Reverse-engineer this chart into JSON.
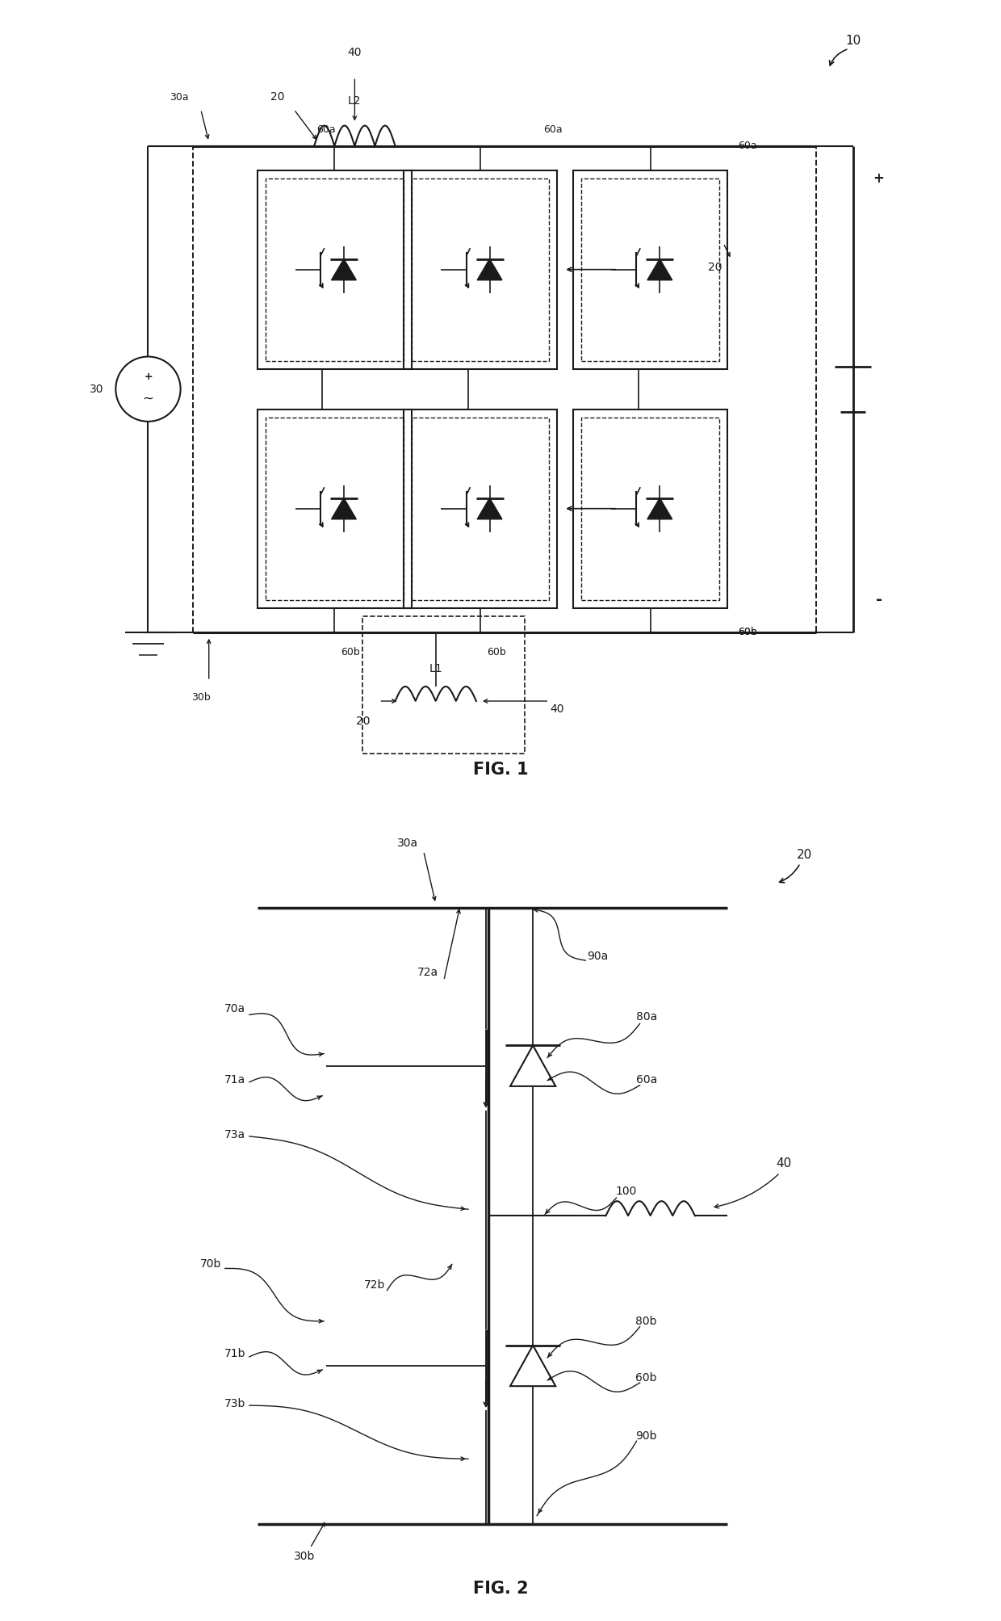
{
  "bg_color": "#ffffff",
  "lc": "#1a1a1a",
  "fig1_title": "FIG. 1",
  "fig2_title": "FIG. 2",
  "labels": {
    "10": "10",
    "40": "40",
    "20": "20",
    "30": "30",
    "30a": "30a",
    "30b": "30b",
    "L1": "L1",
    "L2": "L2",
    "60a": "60a",
    "60b": "60b",
    "70a": "70a",
    "71a": "71a",
    "72a": "72a",
    "73a": "73a",
    "70b": "70b",
    "71b": "71b",
    "72b": "72b",
    "73b": "73b",
    "80a": "80a",
    "80b": "80b",
    "90a": "90a",
    "90b": "90b",
    "100": "100"
  }
}
